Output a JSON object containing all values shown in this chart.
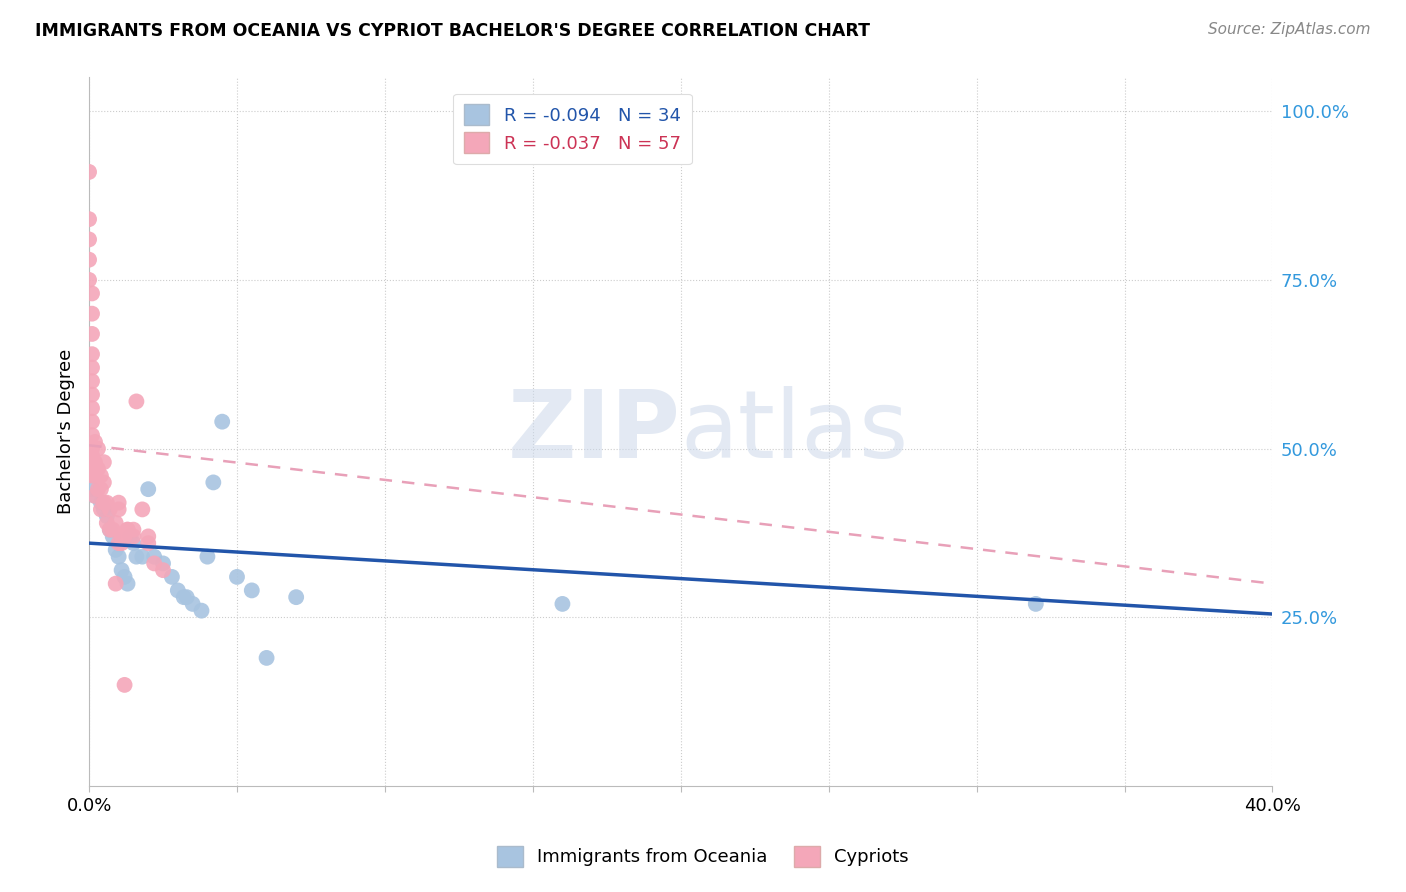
{
  "title": "IMMIGRANTS FROM OCEANIA VS CYPRIOT BACHELOR'S DEGREE CORRELATION CHART",
  "source": "Source: ZipAtlas.com",
  "ylabel": "Bachelor's Degree",
  "xlim": [
    0.0,
    0.4
  ],
  "ylim": [
    0.0,
    1.05
  ],
  "ytick_vals": [
    0.25,
    0.5,
    0.75,
    1.0
  ],
  "ytick_labels": [
    "25.0%",
    "50.0%",
    "75.0%",
    "100.0%"
  ],
  "xtick_vals": [
    0.0,
    0.05,
    0.1,
    0.15,
    0.2,
    0.25,
    0.3,
    0.35,
    0.4
  ],
  "xtick_labels": [
    "0.0%",
    "",
    "",
    "",
    "",
    "",
    "",
    "",
    "40.0%"
  ],
  "blue_R": "-0.094",
  "blue_N": "34",
  "pink_R": "-0.037",
  "pink_N": "57",
  "blue_color": "#a8c4e0",
  "pink_color": "#f4a7b9",
  "blue_line_color": "#2255aa",
  "pink_dash_color": "#e8a0b8",
  "watermark_zip": "ZIP",
  "watermark_atlas": "atlas",
  "blue_points_x": [
    0.001,
    0.002,
    0.004,
    0.005,
    0.006,
    0.007,
    0.008,
    0.009,
    0.01,
    0.011,
    0.012,
    0.013,
    0.014,
    0.015,
    0.016,
    0.018,
    0.02,
    0.022,
    0.025,
    0.028,
    0.03,
    0.032,
    0.033,
    0.035,
    0.038,
    0.04,
    0.042,
    0.045,
    0.05,
    0.055,
    0.06,
    0.07,
    0.16,
    0.32
  ],
  "blue_points_y": [
    0.44,
    0.43,
    0.42,
    0.41,
    0.4,
    0.38,
    0.37,
    0.35,
    0.34,
    0.32,
    0.31,
    0.3,
    0.37,
    0.36,
    0.34,
    0.34,
    0.44,
    0.34,
    0.33,
    0.31,
    0.29,
    0.28,
    0.28,
    0.27,
    0.26,
    0.34,
    0.45,
    0.54,
    0.31,
    0.29,
    0.19,
    0.28,
    0.27,
    0.27
  ],
  "pink_points_x": [
    0.0,
    0.0,
    0.0,
    0.0,
    0.0,
    0.001,
    0.001,
    0.001,
    0.001,
    0.001,
    0.001,
    0.001,
    0.001,
    0.001,
    0.001,
    0.001,
    0.001,
    0.001,
    0.001,
    0.001,
    0.002,
    0.002,
    0.002,
    0.002,
    0.003,
    0.003,
    0.003,
    0.004,
    0.004,
    0.004,
    0.005,
    0.005,
    0.005,
    0.006,
    0.006,
    0.007,
    0.007,
    0.008,
    0.009,
    0.01,
    0.01,
    0.011,
    0.012,
    0.013,
    0.015,
    0.016,
    0.018,
    0.02,
    0.022,
    0.025,
    0.015,
    0.02,
    0.01,
    0.012,
    0.013,
    0.011,
    0.009
  ],
  "pink_points_y": [
    0.91,
    0.84,
    0.81,
    0.78,
    0.75,
    0.73,
    0.7,
    0.67,
    0.64,
    0.62,
    0.6,
    0.58,
    0.56,
    0.54,
    0.52,
    0.5,
    0.49,
    0.48,
    0.47,
    0.46,
    0.51,
    0.48,
    0.46,
    0.43,
    0.5,
    0.47,
    0.44,
    0.46,
    0.44,
    0.41,
    0.48,
    0.45,
    0.42,
    0.42,
    0.39,
    0.41,
    0.38,
    0.38,
    0.39,
    0.36,
    0.42,
    0.37,
    0.15,
    0.38,
    0.37,
    0.57,
    0.41,
    0.36,
    0.33,
    0.32,
    0.38,
    0.37,
    0.41,
    0.37,
    0.38,
    0.36,
    0.3
  ],
  "blue_trendline_x": [
    0.0,
    0.4
  ],
  "blue_trendline_y": [
    0.36,
    0.255
  ],
  "pink_trendline_x": [
    0.0,
    0.4
  ],
  "pink_trendline_y": [
    0.505,
    0.3
  ]
}
